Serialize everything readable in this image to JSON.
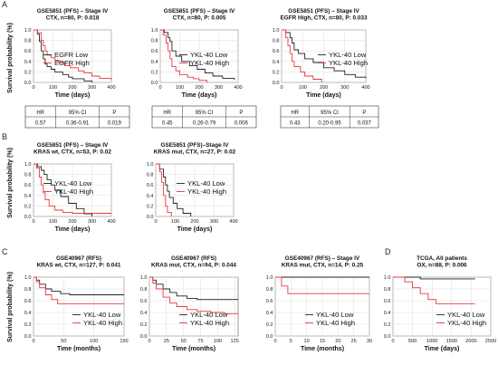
{
  "figure": {
    "ylabels": [
      {
        "id": "A",
        "text": "Survival probability (%)"
      },
      {
        "id": "B",
        "text": "Survival probability (%)"
      },
      {
        "id": "C",
        "text": "Survival probability (%)"
      }
    ]
  },
  "colors": {
    "low": "#222222",
    "high": "#e8383d",
    "grid": "#dcdcdc",
    "axis": "#555555"
  },
  "chart_data": [
    {
      "id": "A1",
      "panel": "A",
      "type": "line",
      "title": [
        "GSE5851 (PFS) – Stage IV",
        "CTX, n=80, P: 0.018"
      ],
      "xlabel": "Time (days)",
      "xlim": [
        0,
        400
      ],
      "ylim": [
        0,
        1
      ],
      "xticks": [
        0,
        100,
        200,
        300,
        400
      ],
      "yticks": [
        0.0,
        0.2,
        0.4,
        0.6,
        0.8,
        1.0
      ],
      "legend": [
        "EGFR Low",
        "EGFR High"
      ],
      "series": [
        {
          "name": "EGFR Low",
          "x": [
            0,
            20,
            30,
            40,
            50,
            60,
            70,
            90,
            110,
            150,
            180,
            200,
            260,
            300
          ],
          "y": [
            1.0,
            0.92,
            0.78,
            0.6,
            0.45,
            0.35,
            0.3,
            0.25,
            0.2,
            0.15,
            0.1,
            0.07,
            0.03,
            0.0
          ]
        },
        {
          "name": "EGFR High",
          "x": [
            0,
            20,
            40,
            50,
            60,
            70,
            90,
            110,
            130,
            160,
            190,
            230,
            260,
            300,
            340,
            400
          ],
          "y": [
            1.0,
            0.95,
            0.8,
            0.7,
            0.6,
            0.52,
            0.47,
            0.42,
            0.38,
            0.32,
            0.28,
            0.22,
            0.18,
            0.12,
            0.08,
            0.05
          ]
        }
      ],
      "table": {
        "headers": [
          "HR",
          "95% CI",
          "P"
        ],
        "values": [
          "0.57",
          "0.36-0.91",
          "0.019"
        ]
      }
    },
    {
      "id": "A2",
      "panel": "A",
      "type": "line",
      "title": [
        "GSE5851 (PFS) – Stage IV",
        "CTX, n=80, P: 0.005"
      ],
      "xlabel": "Time (days)",
      "xlim": [
        0,
        400
      ],
      "ylim": [
        0,
        1
      ],
      "xticks": [
        0,
        100,
        200,
        300,
        400
      ],
      "yticks": [
        0.0,
        0.2,
        0.4,
        0.6,
        0.8,
        1.0
      ],
      "legend": [
        "YKL-40 Low",
        "YKL-40 High"
      ],
      "series": [
        {
          "name": "YKL-40 Low",
          "x": [
            0,
            20,
            40,
            50,
            60,
            80,
            110,
            150,
            190,
            230,
            270,
            320,
            380
          ],
          "y": [
            1.0,
            0.95,
            0.85,
            0.78,
            0.6,
            0.5,
            0.4,
            0.32,
            0.25,
            0.18,
            0.12,
            0.08,
            0.05
          ]
        },
        {
          "name": "YKL-40 High",
          "x": [
            0,
            15,
            30,
            40,
            50,
            60,
            80,
            100,
            140,
            170,
            200,
            240
          ],
          "y": [
            1.0,
            0.9,
            0.75,
            0.6,
            0.45,
            0.3,
            0.22,
            0.15,
            0.1,
            0.07,
            0.04,
            0.0
          ]
        }
      ],
      "table": {
        "headers": [
          "HR",
          "95% CI",
          "P"
        ],
        "values": [
          "0.45",
          "0.26-0.79",
          "0.006"
        ]
      }
    },
    {
      "id": "A3",
      "panel": "A",
      "type": "line",
      "title": [
        "GSE5851 (PFS) – Stage IV",
        "EGFR High, CTX, n=80, P: 0.033"
      ],
      "xlabel": "Time (days)",
      "xlim": [
        0,
        400
      ],
      "ylim": [
        0,
        1
      ],
      "xticks": [
        0,
        100,
        200,
        300,
        400
      ],
      "yticks": [
        0.0,
        0.2,
        0.4,
        0.6,
        0.8,
        1.0
      ],
      "legend": [
        "YKL-40 Low",
        "YKL-40 High"
      ],
      "series": [
        {
          "name": "YKL-40 Low",
          "x": [
            0,
            20,
            40,
            50,
            60,
            80,
            110,
            150,
            200,
            250,
            300,
            350,
            400
          ],
          "y": [
            1.0,
            0.95,
            0.85,
            0.75,
            0.62,
            0.55,
            0.45,
            0.38,
            0.28,
            0.22,
            0.15,
            0.1,
            0.08
          ]
        },
        {
          "name": "YKL-40 High",
          "x": [
            0,
            20,
            30,
            40,
            50,
            60,
            90,
            110,
            150,
            190
          ],
          "y": [
            1.0,
            0.85,
            0.7,
            0.55,
            0.4,
            0.3,
            0.2,
            0.12,
            0.06,
            0.0
          ]
        }
      ],
      "table": {
        "headers": [
          "HR",
          "95% CI",
          "P"
        ],
        "values": [
          "0.43",
          "0.20-0.95",
          "0.037"
        ]
      }
    },
    {
      "id": "B1",
      "panel": "B",
      "type": "line",
      "title": [
        "GSE5851 (PFS) – Stage IV",
        "KRAS wt, CTX, n=53, P: 0.02"
      ],
      "xlabel": "Time (days)",
      "xlim": [
        0,
        400
      ],
      "ylim": [
        0,
        1
      ],
      "xticks": [
        0,
        100,
        200,
        300,
        400
      ],
      "yticks": [
        0.0,
        0.2,
        0.4,
        0.6,
        0.8,
        1.0
      ],
      "legend": [
        "YKL-40 Low",
        "YKL-40 High"
      ],
      "series": [
        {
          "name": "YKL-40 Low",
          "x": [
            0,
            20,
            40,
            55,
            70,
            90,
            110,
            140,
            180,
            220,
            260,
            300
          ],
          "y": [
            1.0,
            0.95,
            0.88,
            0.8,
            0.7,
            0.6,
            0.5,
            0.38,
            0.25,
            0.15,
            0.05,
            0.0
          ]
        },
        {
          "name": "YKL-40 High",
          "x": [
            0,
            15,
            30,
            40,
            50,
            60,
            80,
            110,
            150,
            200,
            400
          ],
          "y": [
            1.0,
            0.92,
            0.75,
            0.6,
            0.45,
            0.32,
            0.2,
            0.12,
            0.08,
            0.06,
            0.06
          ]
        }
      ]
    },
    {
      "id": "B2",
      "panel": "B",
      "type": "line",
      "title": [
        "GSE5851 (PFS)–Stage IV",
        "KRAS mut, CTX, n=27, P: 0.02"
      ],
      "xlabel": "Time (days)",
      "xlim": [
        0,
        400
      ],
      "ylim": [
        0,
        1
      ],
      "xticks": [
        0,
        100,
        200,
        300,
        400
      ],
      "yticks": [
        0.0,
        0.2,
        0.4,
        0.6,
        0.8,
        1.0
      ],
      "legend": [
        "YKL-40 Low",
        "YKL-40 High"
      ],
      "series": [
        {
          "name": "YKL-40 Low",
          "x": [
            0,
            20,
            40,
            50,
            60,
            70,
            90,
            110,
            140,
            180
          ],
          "y": [
            1.0,
            0.9,
            0.75,
            0.6,
            0.48,
            0.36,
            0.25,
            0.15,
            0.06,
            0.0
          ]
        },
        {
          "name": "YKL-40 High",
          "x": [
            0,
            20,
            30,
            40,
            50,
            60,
            80
          ],
          "y": [
            1.0,
            0.85,
            0.65,
            0.4,
            0.2,
            0.08,
            0.0
          ]
        }
      ]
    },
    {
      "id": "C1",
      "panel": "C",
      "type": "line",
      "title": [
        "GSE40967 (RFS)",
        "KRAS wt, CTX, n=127, P: 0.041"
      ],
      "xlabel": "Time (months)",
      "xlim": [
        0,
        150
      ],
      "ylim": [
        0,
        1
      ],
      "xticks": [
        0,
        50,
        100,
        150
      ],
      "yticks": [
        0.0,
        0.2,
        0.4,
        0.6,
        0.8,
        1.0
      ],
      "legend": [
        "YKL-40 Low",
        "YKL-40 High"
      ],
      "series": [
        {
          "name": "YKL-40 Low",
          "x": [
            0,
            5,
            10,
            20,
            30,
            45,
            60,
            80,
            120,
            150
          ],
          "y": [
            1.0,
            0.95,
            0.88,
            0.8,
            0.76,
            0.72,
            0.7,
            0.7,
            0.7,
            0.7
          ]
        },
        {
          "name": "YKL-40 High",
          "x": [
            0,
            5,
            10,
            20,
            30,
            40,
            60,
            80,
            110,
            150
          ],
          "y": [
            1.0,
            0.92,
            0.82,
            0.7,
            0.62,
            0.55,
            0.55,
            0.55,
            0.55,
            0.55
          ]
        }
      ]
    },
    {
      "id": "C2",
      "panel": "C",
      "type": "line",
      "title": [
        "GSE40967 (RFS)",
        "KRAS mut, CTX, n=94, P: 0.044"
      ],
      "xlabel": "Time (months)",
      "xlim": [
        0,
        130
      ],
      "ylim": [
        0,
        1
      ],
      "xticks": [
        0,
        25,
        50,
        75,
        100,
        125
      ],
      "yticks": [
        0.0,
        0.2,
        0.4,
        0.6,
        0.8,
        1.0
      ],
      "legend": [
        "YKL-40 Low",
        "YKL-40 High"
      ],
      "series": [
        {
          "name": "YKL-40 Low",
          "x": [
            0,
            5,
            10,
            20,
            30,
            40,
            55,
            70,
            90,
            110,
            130
          ],
          "y": [
            1.0,
            0.95,
            0.88,
            0.8,
            0.74,
            0.68,
            0.64,
            0.62,
            0.62,
            0.62,
            0.62
          ]
        },
        {
          "name": "YKL-40 High",
          "x": [
            0,
            5,
            10,
            20,
            30,
            40,
            55,
            70,
            90,
            110,
            130
          ],
          "y": [
            1.0,
            0.9,
            0.8,
            0.66,
            0.56,
            0.5,
            0.45,
            0.42,
            0.4,
            0.38,
            0.38
          ]
        }
      ]
    },
    {
      "id": "C3",
      "panel": "C",
      "type": "line",
      "title": [
        "GSE40967 (RFS) – Stage IV",
        "KRAS mut, CTX, n=14, P: 0.25"
      ],
      "xlabel": "Time (months)",
      "xlim": [
        0,
        30
      ],
      "ylim": [
        0,
        1
      ],
      "xticks": [
        0,
        5,
        10,
        15,
        20,
        25,
        30
      ],
      "yticks": [
        0.0,
        0.2,
        0.4,
        0.6,
        0.8,
        1.0
      ],
      "legend": [
        "YKL-40 Low",
        "YKL-40 High"
      ],
      "series": [
        {
          "name": "YKL-40 Low",
          "x": [
            0,
            30
          ],
          "y": [
            1.0,
            1.0
          ]
        },
        {
          "name": "YKL-40 High",
          "x": [
            0,
            2,
            4,
            30
          ],
          "y": [
            1.0,
            0.85,
            0.72,
            0.72
          ]
        }
      ]
    },
    {
      "id": "D1",
      "panel": "D",
      "type": "line",
      "title": [
        "TCGA, All patients",
        "OX, n=88, P: 0.006"
      ],
      "xlabel": "Time (days)",
      "xlim": [
        0,
        2500
      ],
      "ylim": [
        0,
        1
      ],
      "xticks": [
        0,
        500,
        1000,
        1500,
        2000,
        2500
      ],
      "yticks": [
        0.0,
        0.2,
        0.4,
        0.6,
        0.8,
        1.0
      ],
      "legend": [
        "YKL-40 Low",
        "YKL-40 High"
      ],
      "series": [
        {
          "name": "YKL-40 Low",
          "x": [
            0,
            300,
            700,
            1200,
            2100
          ],
          "y": [
            1.0,
            1.0,
            0.97,
            0.97,
            0.97
          ]
        },
        {
          "name": "YKL-40 High",
          "x": [
            0,
            300,
            500,
            700,
            900,
            1100,
            1500,
            2100
          ],
          "y": [
            1.0,
            0.92,
            0.82,
            0.72,
            0.62,
            0.55,
            0.55,
            0.55
          ]
        }
      ]
    }
  ]
}
